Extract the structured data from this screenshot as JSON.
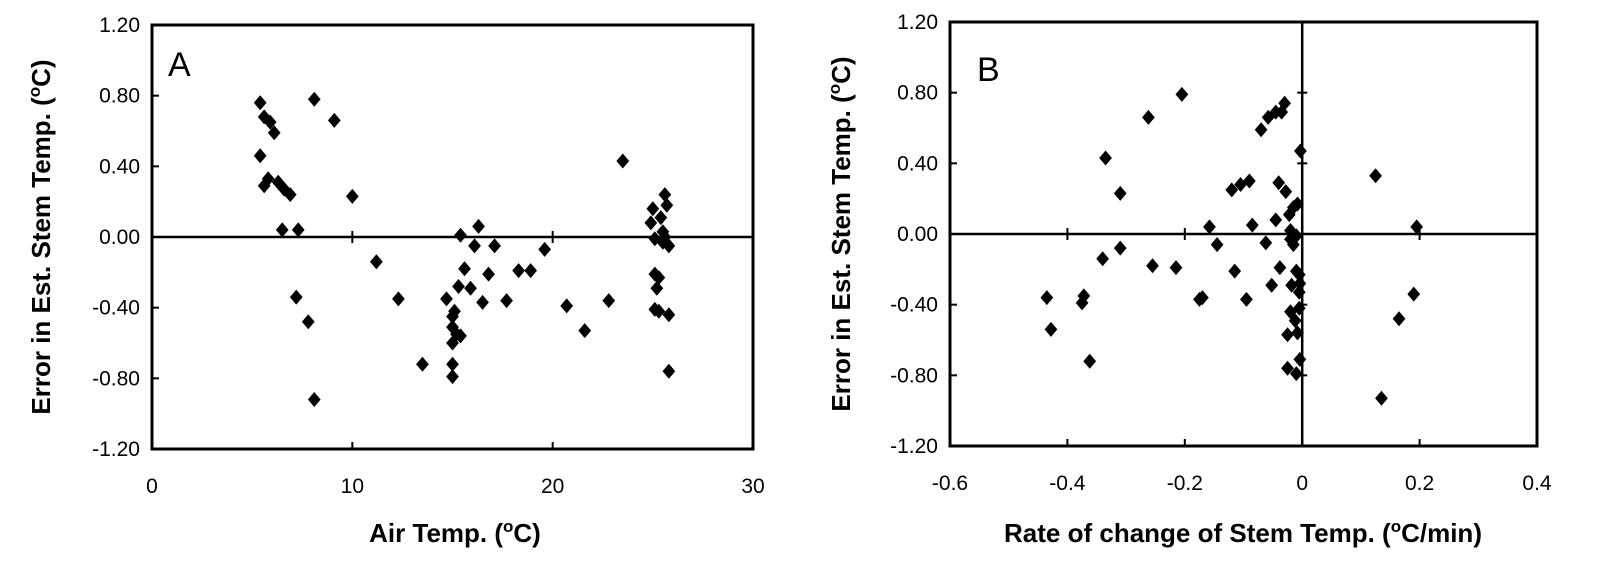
{
  "chart_data": [
    {
      "type": "scatter",
      "panel_label": "A",
      "xlabel": "Air Temp. (oC)",
      "ylabel": "Error in Est. Stem Temp. (oC)",
      "xlim": [
        0,
        30
      ],
      "ylim": [
        -1.2,
        1.2
      ],
      "xticks": [
        "0",
        "10",
        "20",
        "30"
      ],
      "yticks": [
        "1.20",
        "0.80",
        "0.40",
        "0.00",
        "-0.40",
        "-0.80",
        "-1.20"
      ],
      "zero_line": true,
      "grid": false,
      "marker": "diamond",
      "marker_color": "#000000",
      "points": [
        {
          "x": 5.4,
          "y": 0.76
        },
        {
          "x": 5.6,
          "y": 0.68
        },
        {
          "x": 5.9,
          "y": 0.65
        },
        {
          "x": 6.1,
          "y": 0.59
        },
        {
          "x": 5.4,
          "y": 0.46
        },
        {
          "x": 5.6,
          "y": 0.29
        },
        {
          "x": 5.8,
          "y": 0.33
        },
        {
          "x": 6.3,
          "y": 0.31
        },
        {
          "x": 6.6,
          "y": 0.27
        },
        {
          "x": 6.9,
          "y": 0.24
        },
        {
          "x": 6.5,
          "y": 0.04
        },
        {
          "x": 7.3,
          "y": 0.04
        },
        {
          "x": 8.1,
          "y": 0.78
        },
        {
          "x": 9.1,
          "y": 0.66
        },
        {
          "x": 10.0,
          "y": 0.23
        },
        {
          "x": 7.2,
          "y": -0.34
        },
        {
          "x": 7.8,
          "y": -0.48
        },
        {
          "x": 8.1,
          "y": -0.92
        },
        {
          "x": 11.2,
          "y": -0.14
        },
        {
          "x": 12.3,
          "y": -0.35
        },
        {
          "x": 13.5,
          "y": -0.72
        },
        {
          "x": 14.7,
          "y": -0.35
        },
        {
          "x": 15.1,
          "y": -0.42
        },
        {
          "x": 15.0,
          "y": -0.45
        },
        {
          "x": 15.0,
          "y": -0.51
        },
        {
          "x": 15.2,
          "y": -0.55
        },
        {
          "x": 15.0,
          "y": -0.6
        },
        {
          "x": 15.4,
          "y": -0.56
        },
        {
          "x": 15.0,
          "y": -0.72
        },
        {
          "x": 15.0,
          "y": -0.79
        },
        {
          "x": 15.3,
          "y": -0.28
        },
        {
          "x": 15.4,
          "y": 0.01
        },
        {
          "x": 15.6,
          "y": -0.18
        },
        {
          "x": 15.9,
          "y": -0.29
        },
        {
          "x": 16.1,
          "y": -0.05
        },
        {
          "x": 16.3,
          "y": 0.06
        },
        {
          "x": 16.5,
          "y": -0.37
        },
        {
          "x": 16.8,
          "y": -0.21
        },
        {
          "x": 17.1,
          "y": -0.05
        },
        {
          "x": 17.7,
          "y": -0.36
        },
        {
          "x": 18.3,
          "y": -0.19
        },
        {
          "x": 18.9,
          "y": -0.19
        },
        {
          "x": 19.6,
          "y": -0.07
        },
        {
          "x": 20.7,
          "y": -0.39
        },
        {
          "x": 21.6,
          "y": -0.53
        },
        {
          "x": 22.8,
          "y": -0.36
        },
        {
          "x": 23.5,
          "y": 0.43
        },
        {
          "x": 24.9,
          "y": 0.08
        },
        {
          "x": 25.0,
          "y": 0.16
        },
        {
          "x": 25.1,
          "y": -0.01
        },
        {
          "x": 25.1,
          "y": -0.21
        },
        {
          "x": 25.3,
          "y": -0.23
        },
        {
          "x": 25.2,
          "y": -0.29
        },
        {
          "x": 25.1,
          "y": -0.41
        },
        {
          "x": 25.3,
          "y": -0.42
        },
        {
          "x": 25.4,
          "y": 0.11
        },
        {
          "x": 25.5,
          "y": 0.03
        },
        {
          "x": 25.6,
          "y": 0.24
        },
        {
          "x": 25.7,
          "y": 0.18
        },
        {
          "x": 25.6,
          "y": 0.0
        },
        {
          "x": 25.5,
          "y": -0.03
        },
        {
          "x": 25.8,
          "y": -0.05
        },
        {
          "x": 25.8,
          "y": -0.44
        },
        {
          "x": 25.8,
          "y": -0.76
        }
      ]
    },
    {
      "type": "scatter",
      "panel_label": "B",
      "xlabel": "Rate of change of Stem Temp. (oC/min)",
      "ylabel": "Error in Est. Stem Temp. (oC)",
      "xlim": [
        -0.6,
        0.4
      ],
      "ylim": [
        -1.2,
        1.2
      ],
      "xticks": [
        "-0.6",
        "-0.4",
        "-0.2",
        "0",
        "0.2",
        "0.4"
      ],
      "yticks": [
        "1.20",
        "0.80",
        "0.40",
        "0.00",
        "-0.40",
        "-0.80",
        "-1.20"
      ],
      "zero_line": true,
      "grid": false,
      "marker": "diamond",
      "marker_color": "#000000",
      "points": [
        {
          "x": -0.435,
          "y": -0.36
        },
        {
          "x": -0.428,
          "y": -0.54
        },
        {
          "x": -0.375,
          "y": -0.39
        },
        {
          "x": -0.372,
          "y": -0.35
        },
        {
          "x": -0.362,
          "y": -0.72
        },
        {
          "x": -0.34,
          "y": -0.14
        },
        {
          "x": -0.335,
          "y": 0.43
        },
        {
          "x": -0.31,
          "y": 0.23
        },
        {
          "x": -0.31,
          "y": -0.08
        },
        {
          "x": -0.262,
          "y": 0.66
        },
        {
          "x": -0.255,
          "y": -0.18
        },
        {
          "x": -0.215,
          "y": -0.19
        },
        {
          "x": -0.205,
          "y": 0.79
        },
        {
          "x": -0.175,
          "y": -0.37
        },
        {
          "x": -0.17,
          "y": -0.36
        },
        {
          "x": -0.158,
          "y": 0.04
        },
        {
          "x": -0.145,
          "y": -0.06
        },
        {
          "x": -0.12,
          "y": 0.25
        },
        {
          "x": -0.115,
          "y": -0.21
        },
        {
          "x": -0.105,
          "y": 0.28
        },
        {
          "x": -0.095,
          "y": -0.37
        },
        {
          "x": -0.09,
          "y": 0.3
        },
        {
          "x": -0.085,
          "y": 0.05
        },
        {
          "x": -0.07,
          "y": 0.59
        },
        {
          "x": -0.062,
          "y": -0.05
        },
        {
          "x": -0.058,
          "y": 0.66
        },
        {
          "x": -0.052,
          "y": -0.29
        },
        {
          "x": -0.045,
          "y": 0.69
        },
        {
          "x": -0.045,
          "y": 0.08
        },
        {
          "x": -0.04,
          "y": 0.29
        },
        {
          "x": -0.038,
          "y": -0.19
        },
        {
          "x": -0.035,
          "y": 0.69
        },
        {
          "x": -0.03,
          "y": 0.74
        },
        {
          "x": -0.028,
          "y": 0.24
        },
        {
          "x": -0.025,
          "y": -0.57
        },
        {
          "x": -0.025,
          "y": -0.76
        },
        {
          "x": -0.022,
          "y": 0.11
        },
        {
          "x": -0.02,
          "y": 0.02
        },
        {
          "x": -0.02,
          "y": -0.03
        },
        {
          "x": -0.02,
          "y": -0.44
        },
        {
          "x": -0.018,
          "y": -0.29
        },
        {
          "x": -0.015,
          "y": 0.15
        },
        {
          "x": -0.015,
          "y": -0.06
        },
        {
          "x": -0.012,
          "y": -0.49
        },
        {
          "x": -0.01,
          "y": -0.01
        },
        {
          "x": -0.01,
          "y": -0.21
        },
        {
          "x": -0.01,
          "y": -0.79
        },
        {
          "x": -0.008,
          "y": -0.56
        },
        {
          "x": -0.008,
          "y": 0.17
        },
        {
          "x": -0.005,
          "y": -0.42
        },
        {
          "x": -0.005,
          "y": -0.33
        },
        {
          "x": -0.005,
          "y": -0.23
        },
        {
          "x": -0.004,
          "y": -0.71
        },
        {
          "x": -0.004,
          "y": -0.28
        },
        {
          "x": -0.003,
          "y": 0.47
        },
        {
          "x": 0.125,
          "y": 0.33
        },
        {
          "x": 0.135,
          "y": -0.93
        },
        {
          "x": 0.165,
          "y": -0.48
        },
        {
          "x": 0.19,
          "y": -0.34
        },
        {
          "x": 0.195,
          "y": 0.04
        }
      ]
    }
  ]
}
